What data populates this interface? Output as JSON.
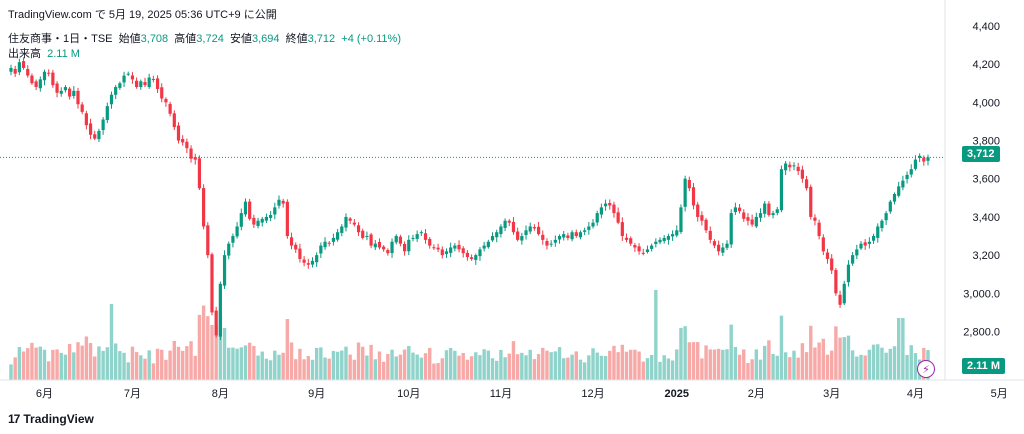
{
  "header": {
    "source_line": "TradingView.com で 5月 19, 2025 05:36 UTC+9 に公開"
  },
  "legend": {
    "symbol": "住友商事・1日・TSE",
    "open_label": "始値",
    "open": "3,708",
    "high_label": "高値",
    "high": "3,724",
    "low_label": "安値",
    "low": "3,694",
    "close_label": "終値",
    "close": "3,712",
    "change": "+4 (+0.11%)",
    "volume_label": "出来高",
    "volume": "2.11 M"
  },
  "price_tag": "3,712",
  "volume_tag": "2.11 M",
  "brand": {
    "logo": "17",
    "name": "TradingView"
  },
  "flash_icon": "lightning-icon",
  "colors": {
    "up": "#089981",
    "down": "#f23645",
    "up_volume": "#8fd3ca",
    "down_volume": "#f7a9a7"
  },
  "chart_data": {
    "type": "candlestick",
    "y_ticks": [
      "4,400",
      "4,200",
      "4,000",
      "3,800",
      "3,600",
      "3,400",
      "3,200",
      "3,000.0",
      "2,800.0"
    ],
    "y_tick_values": [
      4400,
      4200,
      4000,
      3800,
      3600,
      3400,
      3200,
      3000,
      2800
    ],
    "ylim": [
      2740,
      4410
    ],
    "x_ticks": [
      "6月",
      "7月",
      "8月",
      "9月",
      "10月",
      "11月",
      "12月",
      "2025",
      "2月",
      "3月",
      "4月",
      "5月"
    ],
    "x_tick_index": [
      8,
      29,
      50,
      73,
      95,
      117,
      139,
      159,
      178,
      196,
      216,
      236
    ],
    "last_price": 3712,
    "grid": false,
    "closes": [
      4180,
      4150,
      4210,
      4180,
      4140,
      4100,
      4080,
      4120,
      4160,
      4150,
      4090,
      4050,
      4060,
      4080,
      4030,
      4060,
      3990,
      3950,
      3880,
      3830,
      3810,
      3850,
      3910,
      3980,
      4040,
      4080,
      4100,
      4140,
      4150,
      4120,
      4080,
      4110,
      4090,
      4130,
      4120,
      4070,
      4020,
      4000,
      3940,
      3870,
      3800,
      3790,
      3760,
      3705,
      3700,
      3550,
      3350,
      3200,
      2900,
      2780,
      3050,
      3200,
      3260,
      3300,
      3350,
      3420,
      3480,
      3390,
      3360,
      3380,
      3390,
      3400,
      3410,
      3450,
      3490,
      3470,
      3300,
      3250,
      3230,
      3180,
      3160,
      3150,
      3170,
      3200,
      3250,
      3270,
      3260,
      3290,
      3320,
      3350,
      3400,
      3380,
      3360,
      3320,
      3290,
      3300,
      3250,
      3260,
      3240,
      3230,
      3210,
      3270,
      3300,
      3260,
      3220,
      3280,
      3290,
      3310,
      3320,
      3280,
      3250,
      3240,
      3230,
      3200,
      3220,
      3240,
      3250,
      3230,
      3210,
      3190,
      3180,
      3200,
      3230,
      3250,
      3270,
      3300,
      3320,
      3350,
      3380,
      3370,
      3320,
      3280,
      3300,
      3330,
      3350,
      3340,
      3310,
      3280,
      3250,
      3260,
      3280,
      3300,
      3310,
      3290,
      3320,
      3300,
      3320,
      3330,
      3350,
      3370,
      3420,
      3450,
      3470,
      3460,
      3420,
      3370,
      3300,
      3280,
      3260,
      3240,
      3220,
      3210,
      3230,
      3250,
      3270,
      3280,
      3290,
      3300,
      3310,
      3330,
      3450,
      3600,
      3550,
      3460,
      3400,
      3380,
      3330,
      3280,
      3250,
      3220,
      3240,
      3260,
      3420,
      3450,
      3430,
      3390,
      3380,
      3360,
      3400,
      3420,
      3470,
      3410,
      3420,
      3440,
      3650,
      3680,
      3660,
      3670,
      3640,
      3600,
      3550,
      3400,
      3380,
      3300,
      3220,
      3180,
      3120,
      3000,
      2940,
      3050,
      3150,
      3200,
      3230,
      3260,
      3250,
      3270,
      3300,
      3350,
      3380,
      3420,
      3480,
      3520,
      3560,
      3590,
      3620,
      3650,
      3700,
      3720,
      3690,
      3712
    ]
  }
}
